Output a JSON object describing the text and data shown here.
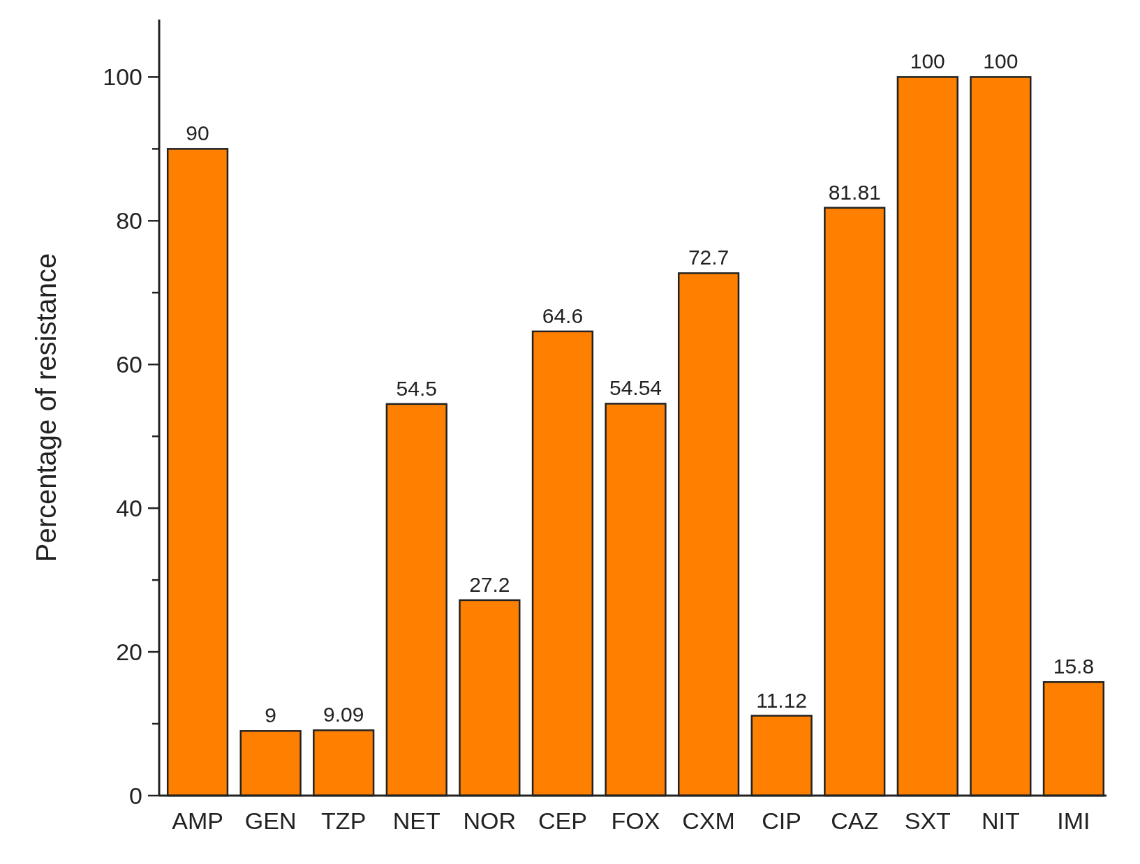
{
  "chart_data": {
    "type": "bar",
    "ylabel": "Percentage of resistance",
    "categories": [
      "AMP",
      "GEN",
      "TZP",
      "NET",
      "NOR",
      "CEP",
      "FOX",
      "CXM",
      "CIP",
      "CAZ",
      "SXT",
      "NIT",
      "IMI"
    ],
    "values": [
      90,
      9,
      9.09,
      54.5,
      27.2,
      64.6,
      54.54,
      72.7,
      11.12,
      81.81,
      100,
      100,
      15.8
    ],
    "color": "#ff8000",
    "ylim": [
      0,
      108
    ],
    "yticks": [
      0,
      {
        "value": 10,
        "label": null
      },
      20,
      {
        "value": 30,
        "label": null
      },
      40,
      {
        "value": 50,
        "label": null
      },
      60,
      {
        "value": 70,
        "label": null
      },
      80,
      {
        "value": 90,
        "label": null
      },
      100
    ],
    "data_labels": true
  }
}
